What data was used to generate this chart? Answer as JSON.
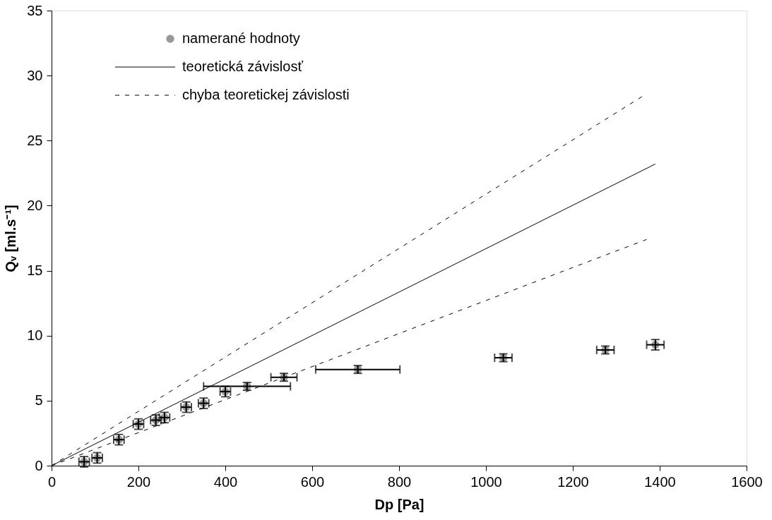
{
  "chart_data": {
    "type": "scatter",
    "xlabel": "Dp [Pa]",
    "ylabel": "Qᵥ [ml.s⁻¹]",
    "xlim": [
      0,
      1600
    ],
    "xticks": [
      0,
      200,
      400,
      600,
      800,
      1000,
      1200,
      1400,
      1600
    ],
    "ylim": [
      0,
      35
    ],
    "yticks": [
      0,
      5,
      10,
      15,
      20,
      25,
      30,
      35
    ],
    "grid": false,
    "legend": "top left",
    "series": [
      {
        "name": "namerané hodnoty",
        "marker": "circle",
        "color": "#999999",
        "x": [
          75,
          105,
          155,
          200,
          240,
          260,
          310,
          350,
          400,
          450,
          535,
          705,
          1040,
          1275,
          1390
        ],
        "values": [
          0.3,
          0.6,
          2.0,
          3.2,
          3.5,
          3.7,
          4.5,
          4.8,
          5.7,
          6.1,
          6.8,
          7.4,
          8.3,
          8.9,
          9.3
        ],
        "errors": [
          0.4,
          0.4,
          0.4,
          0.4,
          0.4,
          0.4,
          0.4,
          0.4,
          0.4,
          0.3,
          0.3,
          0.3,
          0.3,
          0.3,
          0.4
        ],
        "xerrors": [
          12,
          12,
          12,
          12,
          12,
          12,
          12,
          12,
          12,
          100,
          30,
          97,
          20,
          20,
          20
        ]
      },
      {
        "name": "teoretická závislosť",
        "type": "line",
        "line_style": "solid",
        "color": "#000000",
        "x": [
          0,
          1390
        ],
        "values": [
          0,
          23.2
        ]
      },
      {
        "name": "chyba teoretickej závislosti",
        "type": "line",
        "line_style": "dashed",
        "color": "#000000",
        "x": [
          0,
          1360
        ],
        "values": [
          0,
          28.4
        ]
      },
      {
        "type": "line",
        "line_style": "dashed",
        "color": "#000000",
        "x": [
          0,
          1370
        ],
        "values": [
          0,
          17.4
        ]
      }
    ]
  }
}
